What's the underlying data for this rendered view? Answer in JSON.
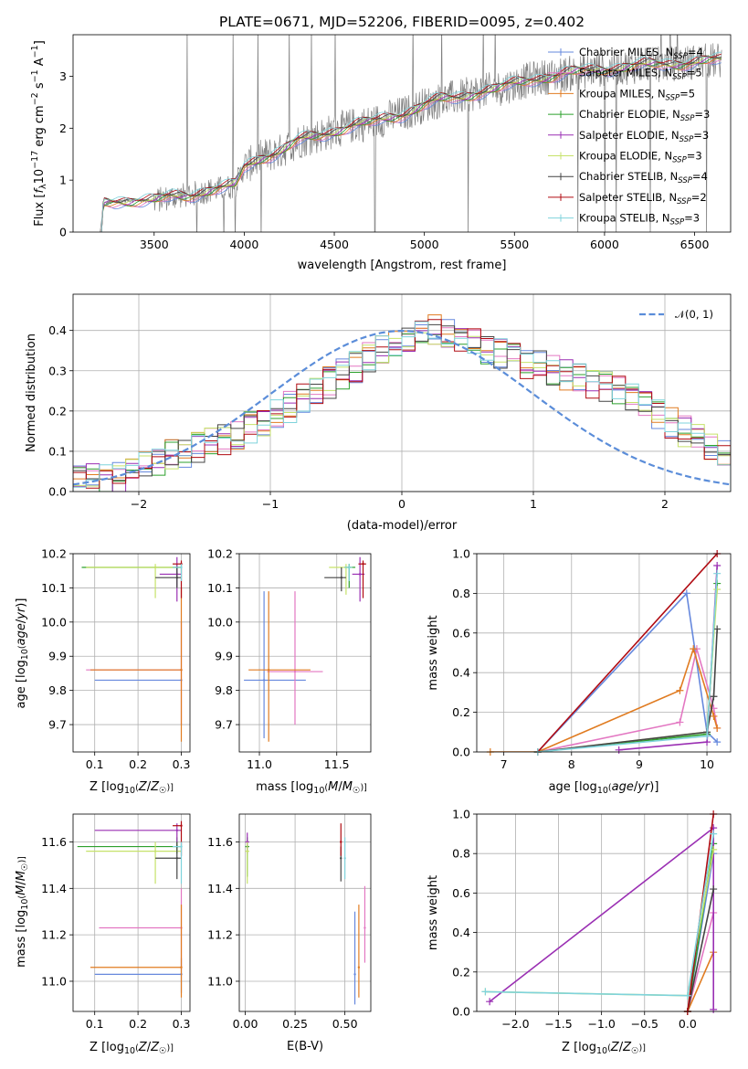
{
  "chart_data": [
    {
      "type": "line",
      "panel": "spectrum",
      "title": "PLATE=0671, MJD=52206, FIBERID=0095, z=0.402",
      "xlabel": "wavelength [Angstrom, rest frame]",
      "ylabel": "Flux [f_λ 10⁻¹⁷ erg cm⁻² s⁻¹ A⁻¹]",
      "xlim": [
        3050,
        6700
      ],
      "ylim": [
        0,
        3.8
      ],
      "xticks": [
        "3500",
        "4000",
        "4500",
        "5000",
        "5500",
        "6000",
        "6500"
      ],
      "yticks": [
        "0",
        "1",
        "2",
        "3"
      ],
      "legend_position": "top-right",
      "data_color": "#808080",
      "continuum": {
        "x": [
          3200,
          3220,
          3300,
          3400,
          3500,
          3600,
          3700,
          3800,
          3900,
          3950,
          4000,
          4100,
          4200,
          4300,
          4400,
          4500,
          4600,
          4700,
          4800,
          4900,
          5000,
          5100,
          5200,
          5300,
          5400,
          5500,
          5600,
          5700,
          5800,
          5900,
          6000,
          6200,
          6400,
          6600
        ],
        "y": [
          0,
          0.55,
          0.6,
          0.62,
          0.6,
          0.68,
          0.72,
          0.8,
          0.85,
          0.9,
          1.25,
          1.45,
          1.55,
          1.75,
          1.85,
          1.95,
          2.05,
          2.1,
          2.2,
          2.3,
          2.45,
          2.55,
          2.6,
          2.7,
          2.75,
          2.85,
          2.95,
          3.0,
          3.05,
          3.1,
          3.15,
          3.2,
          3.25,
          3.3
        ]
      },
      "models": [
        {
          "name": "Chabrier MILES, N_SSP=4",
          "color": "#6688dd"
        },
        {
          "name": "Salpeter MILES, N_SSP=5",
          "color": "#e377c2"
        },
        {
          "name": "Kroupa MILES, N_SSP=5",
          "color": "#e07b20"
        },
        {
          "name": "Chabrier ELODIE, N_SSP=3",
          "color": "#2ca02c"
        },
        {
          "name": "Salpeter ELODIE, N_SSP=3",
          "color": "#9a2fb3"
        },
        {
          "name": "Kroupa ELODIE, N_SSP=3",
          "color": "#c6e26a"
        },
        {
          "name": "Chabrier STELIB, N_SSP=4",
          "color": "#444444"
        },
        {
          "name": "Salpeter STELIB, N_SSP=2",
          "color": "#b00b12"
        },
        {
          "name": "Kroupa STELIB, N_SSP=3",
          "color": "#7fd3dc"
        }
      ]
    },
    {
      "type": "histogram",
      "panel": "residuals",
      "xlabel": "(data-model)/error",
      "ylabel": "Normed distribution",
      "xlim": [
        -2.5,
        2.5
      ],
      "ylim": [
        0,
        0.49
      ],
      "xticks": [
        "−2",
        "−1",
        "0",
        "1",
        "2"
      ],
      "yticks": [
        "0.0",
        "0.1",
        "0.2",
        "0.3",
        "0.4"
      ],
      "grid": true,
      "legend_position": "top-right",
      "gaussian_label": "𝒩(0, 1)",
      "gaussian_color": "#5b8dd9",
      "bin_width": 0.1,
      "bins_start": -2.5,
      "envelope": [
        0.04,
        0.035,
        0.03,
        0.035,
        0.045,
        0.06,
        0.07,
        0.09,
        0.1,
        0.11,
        0.12,
        0.13,
        0.145,
        0.16,
        0.17,
        0.19,
        0.21,
        0.23,
        0.25,
        0.27,
        0.29,
        0.31,
        0.33,
        0.35,
        0.37,
        0.38,
        0.39,
        0.4,
        0.39,
        0.38,
        0.37,
        0.35,
        0.34,
        0.33,
        0.32,
        0.31,
        0.3,
        0.29,
        0.28,
        0.27,
        0.26,
        0.25,
        0.23,
        0.21,
        0.19,
        0.17,
        0.15,
        0.13,
        0.11,
        0.1
      ]
    },
    {
      "type": "scatter",
      "panel": "Z-age",
      "xlabel": "Z [log10(Z/Z☉)]",
      "ylabel": "age [log10(age/yr)]",
      "xlim": [
        0.05,
        0.32
      ],
      "ylim": [
        9.62,
        10.2
      ],
      "xticks": [
        "0.1",
        "0.2",
        "0.3"
      ],
      "yticks": [
        "9.7",
        "9.8",
        "9.9",
        "10.0",
        "10.1",
        "10.2"
      ],
      "points": [
        {
          "model": 0,
          "x": 0.3,
          "y": 9.83,
          "xlo": 0.1,
          "xhi": 0.3,
          "ylo": 9.83,
          "yhi": 9.83
        },
        {
          "model": 1,
          "x": 0.3,
          "y": 9.86,
          "xlo": 0.08,
          "xhi": 0.3,
          "ylo": 9.7,
          "yhi": 10.0
        },
        {
          "model": 2,
          "x": 0.3,
          "y": 9.86,
          "xlo": 0.09,
          "xhi": 0.3,
          "ylo": 9.65,
          "yhi": 10.1
        },
        {
          "model": 3,
          "x": 0.29,
          "y": 10.16,
          "xlo": 0.07,
          "xhi": 0.3,
          "ylo": 10.1,
          "yhi": 10.17
        },
        {
          "model": 4,
          "x": 0.29,
          "y": 10.14,
          "xlo": 0.25,
          "xhi": 0.3,
          "ylo": 10.06,
          "yhi": 10.19
        },
        {
          "model": 5,
          "x": 0.24,
          "y": 10.16,
          "xlo": 0.08,
          "xhi": 0.3,
          "ylo": 10.07,
          "yhi": 10.17
        },
        {
          "model": 6,
          "x": 0.29,
          "y": 10.13,
          "xlo": 0.24,
          "xhi": 0.3,
          "ylo": 10.1,
          "yhi": 10.16
        },
        {
          "model": 7,
          "x": 0.3,
          "y": 10.17,
          "xlo": 0.28,
          "xhi": 0.3,
          "ylo": 10.07,
          "yhi": 10.18
        },
        {
          "model": 8,
          "x": 0.3,
          "y": 10.16,
          "xlo": 0.28,
          "xhi": 0.3,
          "ylo": 10.12,
          "yhi": 10.17
        }
      ]
    },
    {
      "type": "scatter",
      "panel": "mass-age",
      "xlabel": "mass [log10(M/M☉)]",
      "ylabel": "",
      "xlim": [
        10.87,
        11.72
      ],
      "ylim": [
        9.62,
        10.2
      ],
      "xticks": [
        "11.0",
        "11.5"
      ],
      "yticks": [
        "9.7",
        "9.8",
        "9.9",
        "10.0",
        "10.1",
        "10.2"
      ],
      "points": [
        {
          "model": 0,
          "x": 11.03,
          "y": 9.83,
          "xlo": 10.9,
          "xhi": 11.3,
          "ylo": 9.66,
          "yhi": 10.09
        },
        {
          "model": 1,
          "x": 11.23,
          "y": 9.855,
          "xlo": 11.05,
          "xhi": 11.41,
          "ylo": 9.7,
          "yhi": 10.09
        },
        {
          "model": 2,
          "x": 11.06,
          "y": 9.86,
          "xlo": 10.93,
          "xhi": 11.33,
          "ylo": 9.65,
          "yhi": 10.09
        },
        {
          "model": 3,
          "x": 11.58,
          "y": 10.16,
          "xlo": 11.55,
          "xhi": 11.62,
          "ylo": 10.1,
          "yhi": 10.17
        },
        {
          "model": 4,
          "x": 11.65,
          "y": 10.14,
          "xlo": 11.6,
          "xhi": 11.68,
          "ylo": 10.06,
          "yhi": 10.19
        },
        {
          "model": 5,
          "x": 11.56,
          "y": 10.16,
          "xlo": 11.45,
          "xhi": 11.6,
          "ylo": 10.08,
          "yhi": 10.17
        },
        {
          "model": 6,
          "x": 11.53,
          "y": 10.13,
          "xlo": 11.42,
          "xhi": 11.56,
          "ylo": 10.09,
          "yhi": 10.16
        },
        {
          "model": 7,
          "x": 11.67,
          "y": 10.17,
          "xlo": 11.64,
          "xhi": 11.69,
          "ylo": 10.07,
          "yhi": 10.18
        },
        {
          "model": 8,
          "x": 11.58,
          "y": 10.16,
          "xlo": 11.55,
          "xhi": 11.6,
          "ylo": 10.12,
          "yhi": 10.17
        }
      ]
    },
    {
      "type": "line",
      "panel": "age-weight",
      "xlabel": "age [log10(age/yr)]",
      "ylabel": "mass weight",
      "xlim": [
        6.6,
        10.35
      ],
      "ylim": [
        0,
        1
      ],
      "xticks": [
        "7",
        "8",
        "9",
        "10"
      ],
      "yticks": [
        "0.0",
        "0.2",
        "0.4",
        "0.6",
        "0.8",
        "1.0"
      ],
      "grid": true,
      "series": [
        {
          "model": 0,
          "x": [
            7.5,
            9.7,
            10.0,
            10.15
          ],
          "y": [
            0,
            0.8,
            0.1,
            0.05
          ]
        },
        {
          "model": 1,
          "x": [
            7.5,
            9.6,
            9.85,
            10.1,
            10.15
          ],
          "y": [
            0,
            0.15,
            0.52,
            0.22,
            0.12
          ]
        },
        {
          "model": 2,
          "x": [
            6.8,
            7.5,
            9.6,
            9.8,
            10.1,
            10.15
          ],
          "y": [
            0,
            0,
            0.31,
            0.52,
            0.18,
            0.12
          ]
        },
        {
          "model": 3,
          "x": [
            7.5,
            10.0,
            10.15
          ],
          "y": [
            0,
            0.09,
            0.85
          ]
        },
        {
          "model": 4,
          "x": [
            8.7,
            10.0,
            10.15
          ],
          "y": [
            0.01,
            0.05,
            0.94
          ]
        },
        {
          "model": 5,
          "x": [
            7.5,
            10.0,
            10.15
          ],
          "y": [
            0,
            0.1,
            0.82
          ]
        },
        {
          "model": 6,
          "x": [
            7.5,
            10.0,
            10.1,
            10.15
          ],
          "y": [
            0,
            0.1,
            0.28,
            0.62
          ]
        },
        {
          "model": 7,
          "x": [
            7.5,
            10.15
          ],
          "y": [
            0,
            1.0
          ]
        },
        {
          "model": 8,
          "x": [
            7.5,
            10.0,
            10.15
          ],
          "y": [
            0,
            0.08,
            0.9
          ]
        }
      ]
    },
    {
      "type": "scatter",
      "panel": "Z-mass",
      "xlabel": "Z [log10(Z/Z☉)]",
      "ylabel": "mass [log10(M/M☉)]",
      "xlim": [
        0.05,
        0.32
      ],
      "ylim": [
        10.87,
        11.72
      ],
      "xticks": [
        "0.1",
        "0.2",
        "0.3"
      ],
      "yticks": [
        "11.0",
        "11.2",
        "11.4",
        "11.6"
      ],
      "points": [
        {
          "model": 0,
          "x": 0.3,
          "y": 11.03,
          "xlo": 0.1,
          "xhi": 0.3,
          "ylo": 10.95,
          "yhi": 11.1
        },
        {
          "model": 1,
          "x": 0.3,
          "y": 11.23,
          "xlo": 0.11,
          "xhi": 0.3,
          "ylo": 11.05,
          "yhi": 11.4
        },
        {
          "model": 2,
          "x": 0.3,
          "y": 11.06,
          "xlo": 0.09,
          "xhi": 0.3,
          "ylo": 10.93,
          "yhi": 11.33
        },
        {
          "model": 3,
          "x": 0.29,
          "y": 11.58,
          "xlo": 0.06,
          "xhi": 0.3,
          "ylo": 11.55,
          "yhi": 11.62
        },
        {
          "model": 4,
          "x": 0.29,
          "y": 11.65,
          "xlo": 0.1,
          "xhi": 0.3,
          "ylo": 11.6,
          "yhi": 11.68
        },
        {
          "model": 5,
          "x": 0.24,
          "y": 11.56,
          "xlo": 0.08,
          "xhi": 0.3,
          "ylo": 11.42,
          "yhi": 11.6
        },
        {
          "model": 6,
          "x": 0.29,
          "y": 11.53,
          "xlo": 0.24,
          "xhi": 0.3,
          "ylo": 11.44,
          "yhi": 11.6
        },
        {
          "model": 7,
          "x": 0.3,
          "y": 11.67,
          "xlo": 0.28,
          "xhi": 0.3,
          "ylo": 11.54,
          "yhi": 11.69
        },
        {
          "model": 8,
          "x": 0.3,
          "y": 11.58,
          "xlo": 0.28,
          "xhi": 0.3,
          "ylo": 11.42,
          "yhi": 11.6
        }
      ]
    },
    {
      "type": "scatter",
      "panel": "EBV-mass",
      "xlabel": "E(B-V)",
      "ylabel": "",
      "xlim": [
        -0.03,
        0.63
      ],
      "ylim": [
        10.87,
        11.72
      ],
      "xticks": [
        "0.00",
        "0.25",
        "0.50"
      ],
      "yticks": [
        "11.0",
        "11.2",
        "11.4",
        "11.6"
      ],
      "points": [
        {
          "model": 0,
          "x": 0.55,
          "y": 11.03,
          "xlo": 0.55,
          "xhi": 0.55,
          "ylo": 10.9,
          "yhi": 11.3
        },
        {
          "model": 1,
          "x": 0.6,
          "y": 11.23,
          "xlo": 0.6,
          "xhi": 0.6,
          "ylo": 11.08,
          "yhi": 11.41
        },
        {
          "model": 2,
          "x": 0.57,
          "y": 11.06,
          "xlo": 0.57,
          "xhi": 0.57,
          "ylo": 10.93,
          "yhi": 11.33
        },
        {
          "model": 3,
          "x": 0.01,
          "y": 11.58,
          "xlo": 0.0,
          "xhi": 0.02,
          "ylo": 11.45,
          "yhi": 11.62
        },
        {
          "model": 4,
          "x": 0.01,
          "y": 11.6,
          "xlo": 0.0,
          "xhi": 0.02,
          "ylo": 11.55,
          "yhi": 11.64
        },
        {
          "model": 5,
          "x": 0.01,
          "y": 11.56,
          "xlo": 0.0,
          "xhi": 0.02,
          "ylo": 11.42,
          "yhi": 11.6
        },
        {
          "model": 6,
          "x": 0.48,
          "y": 11.53,
          "xlo": 0.48,
          "xhi": 0.48,
          "ylo": 11.43,
          "yhi": 11.58
        },
        {
          "model": 7,
          "x": 0.48,
          "y": 11.6,
          "xlo": 0.48,
          "xhi": 0.48,
          "ylo": 11.54,
          "yhi": 11.68
        },
        {
          "model": 8,
          "x": 0.5,
          "y": 11.53,
          "xlo": 0.5,
          "xhi": 0.5,
          "ylo": 11.44,
          "yhi": 11.62
        }
      ]
    },
    {
      "type": "line",
      "panel": "Z-weight",
      "xlabel": "Z [log10(Z/Z☉)]",
      "ylabel": "mass weight",
      "xlim": [
        -2.45,
        0.5
      ],
      "ylim": [
        0,
        1
      ],
      "xticks": [
        "−2.0",
        "−1.5",
        "−1.0",
        "−0.5",
        "0.0"
      ],
      "yticks": [
        "0.0",
        "0.2",
        "0.4",
        "0.6",
        "0.8",
        "1.0"
      ],
      "grid": true,
      "series": [
        {
          "model": 0,
          "x": [
            0.0,
            0.3
          ],
          "y": [
            0,
            0.8
          ]
        },
        {
          "model": 1,
          "x": [
            0.0,
            0.3
          ],
          "y": [
            0,
            0.5
          ]
        },
        {
          "model": 2,
          "x": [
            0.0,
            0.3
          ],
          "y": [
            0,
            0.3
          ]
        },
        {
          "model": 3,
          "x": [
            0.0,
            0.3
          ],
          "y": [
            0,
            0.85
          ]
        },
        {
          "model": 4,
          "x": [
            -2.3,
            0.3,
            0.3
          ],
          "y": [
            0.05,
            0.93,
            0.01
          ]
        },
        {
          "model": 5,
          "x": [
            -2.35,
            0.0,
            0.3
          ],
          "y": [
            0.1,
            0.08,
            0.82
          ]
        },
        {
          "model": 6,
          "x": [
            0.0,
            0.3
          ],
          "y": [
            0,
            0.62
          ]
        },
        {
          "model": 7,
          "x": [
            0.0,
            0.3
          ],
          "y": [
            0,
            1.0
          ]
        },
        {
          "model": 8,
          "x": [
            -2.35,
            0.0,
            0.3
          ],
          "y": [
            0.1,
            0.08,
            0.9
          ]
        }
      ]
    }
  ]
}
